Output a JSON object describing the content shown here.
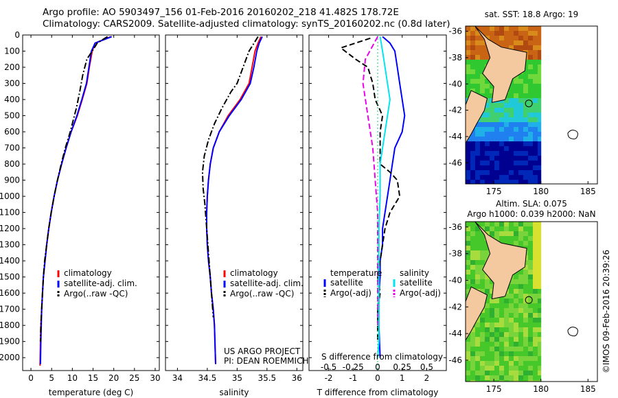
{
  "header": {
    "line1": "Argo profile: AO 5903497_156 01-Feb-2016 20160202_218 41.482S 178.72E",
    "line2": "Climatology: CARS2009. Satellite-adjusted climatology: synTS_20160202.nc (0.8d later)"
  },
  "credit": "©IMOS 09-Feb-2016 20:39:26",
  "colors": {
    "climatology": "#ff0000",
    "satellite": "#0000ff",
    "argo": "#000000",
    "sal_satellite": "#00e5ee",
    "sal_argo": "#ee00ee",
    "land": "#f5c9a0"
  },
  "chart_data": [
    {
      "type": "line",
      "panel": "temperature",
      "xlabel": "temperature (deg C)",
      "ylabel": "",
      "xlim": [
        -2,
        31
      ],
      "ylim": [
        2080,
        0
      ],
      "xticks": [
        "0",
        "5",
        "10",
        "15",
        "20",
        "25",
        "30"
      ],
      "xtick_values": [
        0,
        5,
        10,
        15,
        20,
        25,
        30
      ],
      "yticks": [
        "0",
        "100",
        "200",
        "300",
        "400",
        "500",
        "600",
        "700",
        "800",
        "900",
        "1000",
        "1100",
        "1200",
        "1300",
        "1400",
        "1500",
        "1600",
        "1700",
        "1800",
        "1900",
        "2000"
      ],
      "ytick_values": [
        0,
        100,
        200,
        300,
        400,
        500,
        600,
        700,
        800,
        900,
        1000,
        1100,
        1200,
        1300,
        1400,
        1500,
        1600,
        1700,
        1800,
        1900,
        2000
      ],
      "legend": [
        "climatology",
        "satellite-adj. clim.",
        "Argo(..raw -QC)"
      ],
      "series": [
        {
          "name": "climatology",
          "style": "solid",
          "color": "#ff0000",
          "x": [
            19.3,
            15.5,
            14.8,
            14.1,
            13.5,
            12.4,
            11.2,
            9.7,
            8.5,
            7.4,
            6.4,
            5.6,
            4.9,
            4.3,
            3.8,
            3.4,
            3.0,
            2.8,
            2.6,
            2.4,
            2.3,
            2.2
          ],
          "y": [
            10,
            50,
            100,
            200,
            300,
            400,
            500,
            600,
            700,
            800,
            900,
            1000,
            1100,
            1200,
            1300,
            1400,
            1500,
            1600,
            1700,
            1800,
            1900,
            2050
          ]
        },
        {
          "name": "satellite-adj. clim.",
          "style": "solid",
          "color": "#0000ff",
          "x": [
            19.5,
            15.5,
            14.6,
            14.0,
            13.4,
            12.3,
            11.1,
            9.7,
            8.5,
            7.4,
            6.4,
            5.6,
            4.9,
            4.3,
            3.8,
            3.4,
            3.0,
            2.8,
            2.6,
            2.5,
            2.4,
            2.3
          ],
          "y": [
            10,
            50,
            100,
            200,
            300,
            400,
            500,
            600,
            700,
            800,
            900,
            1000,
            1100,
            1200,
            1300,
            1400,
            1500,
            1600,
            1700,
            1800,
            1900,
            2040
          ]
        },
        {
          "name": "Argo(..raw -QC)",
          "style": "dashdot",
          "color": "#000000",
          "x": [
            18.5,
            16.0,
            14.8,
            13.5,
            12.5,
            11.8,
            11.0,
            9.5,
            8.3,
            7.3,
            6.4,
            5.6,
            4.9,
            4.3,
            3.8,
            3.3,
            3.0,
            2.8,
            2.6,
            2.4,
            2.3
          ],
          "y": [
            10,
            50,
            100,
            150,
            250,
            350,
            450,
            600,
            700,
            800,
            900,
            1000,
            1100,
            1200,
            1300,
            1400,
            1500,
            1600,
            1700,
            1800,
            1900
          ]
        }
      ]
    },
    {
      "type": "line",
      "panel": "salinity",
      "xlabel": "salinity",
      "xlim": [
        33.8,
        36.1
      ],
      "ylim": [
        2080,
        0
      ],
      "xticks": [
        "34",
        "34.5",
        "35",
        "35.5",
        "36"
      ],
      "xtick_values": [
        34,
        34.5,
        35,
        35.5,
        36
      ],
      "legend": [
        "climatology",
        "satellite-adj. clim.",
        "Argo(..raw -QC)"
      ],
      "annotation": [
        "US ARGO PROJECT",
        "PI: DEAN ROEMMICH"
      ],
      "series": [
        {
          "name": "climatology",
          "style": "solid",
          "color": "#ff0000",
          "x": [
            35.4,
            35.35,
            35.3,
            35.25,
            35.2,
            35.05,
            34.85,
            34.7,
            34.6,
            34.55,
            34.52,
            34.5,
            34.49,
            34.49,
            34.5,
            34.52,
            34.55,
            34.57,
            34.6,
            34.62,
            34.64
          ],
          "y": [
            10,
            50,
            100,
            200,
            300,
            400,
            500,
            600,
            700,
            800,
            900,
            1000,
            1100,
            1200,
            1300,
            1400,
            1500,
            1600,
            1700,
            1800,
            2040
          ]
        },
        {
          "name": "satellite-adj. clim.",
          "style": "solid",
          "color": "#0000ff",
          "x": [
            35.42,
            35.37,
            35.33,
            35.28,
            35.22,
            35.07,
            34.87,
            34.7,
            34.6,
            34.55,
            34.52,
            34.5,
            34.49,
            34.49,
            34.5,
            34.52,
            34.55,
            34.57,
            34.6,
            34.62,
            34.64
          ],
          "y": [
            10,
            50,
            100,
            200,
            300,
            400,
            500,
            600,
            700,
            800,
            900,
            1000,
            1100,
            1200,
            1300,
            1400,
            1500,
            1600,
            1700,
            1800,
            2040
          ]
        },
        {
          "name": "Argo(..raw -QC)",
          "style": "dashdot",
          "color": "#000000",
          "x": [
            35.35,
            35.2,
            35.1,
            35.0,
            34.9,
            34.75,
            34.62,
            34.52,
            34.45,
            34.42,
            34.43,
            34.46,
            34.48,
            34.5,
            34.52,
            34.54,
            34.56,
            34.58,
            34.6
          ],
          "y": [
            10,
            100,
            200,
            300,
            350,
            450,
            550,
            650,
            750,
            850,
            950,
            1050,
            1150,
            1250,
            1350,
            1450,
            1550,
            1650,
            1750
          ]
        }
      ]
    },
    {
      "type": "line",
      "panel": "differences",
      "xlabel": "T difference from climatology",
      "xlabel_top": "S difference from climatology",
      "xlim": [
        -2.8,
        2.8
      ],
      "ylim": [
        2080,
        0
      ],
      "xticks": [
        "-2",
        "-1",
        "0",
        "1",
        "2"
      ],
      "xtick_values": [
        -2,
        -1,
        0,
        1,
        2
      ],
      "xticks_top": [
        "-0.5",
        "-0.25",
        "0",
        "0.25",
        "0.5"
      ],
      "legend_titles": [
        "temperature",
        "salinity"
      ],
      "legend": [
        "satellite",
        "Argo(-adj)",
        "satellite",
        "Argo(-adj)"
      ],
      "series": [
        {
          "name": "temperature satellite",
          "style": "solid",
          "color": "#0000ff",
          "x": [
            0.2,
            0.5,
            0.7,
            0.8,
            0.9,
            1.0,
            1.1,
            1.0,
            0.7,
            0.6,
            0.5,
            0.4,
            0.3,
            0.2,
            0.2,
            0.1,
            0.1,
            0.05,
            0.05,
            0.05,
            0.1
          ],
          "y": [
            10,
            50,
            100,
            200,
            300,
            400,
            500,
            600,
            700,
            800,
            900,
            1000,
            1100,
            1200,
            1300,
            1400,
            1500,
            1600,
            1700,
            1800,
            2000
          ]
        },
        {
          "name": "temperature Argo(-adj)",
          "style": "dashed",
          "color": "#000000",
          "x": [
            -0.3,
            -1.5,
            -0.9,
            -0.4,
            -0.2,
            -0.1,
            0.2,
            0.1,
            0.1,
            0.5,
            0.8,
            0.9,
            0.5,
            0.3,
            0.2,
            0.1,
            0.0,
            0.1,
            0.0,
            0.0,
            0.0
          ],
          "y": [
            20,
            80,
            150,
            200,
            300,
            400,
            500,
            600,
            800,
            850,
            900,
            1000,
            1100,
            1200,
            1300,
            1400,
            1500,
            1600,
            1700,
            1800,
            1900
          ]
        },
        {
          "name": "salinity satellite",
          "style": "solid",
          "color": "#00e5ee",
          "x": [
            0.1,
            0.2,
            0.3,
            0.4,
            0.5,
            0.4,
            0.3,
            0.2,
            0.1,
            0.1,
            0.05,
            0.05,
            0.05,
            0.05,
            0.05,
            0.0
          ],
          "y": [
            10,
            100,
            200,
            300,
            400,
            500,
            600,
            700,
            800,
            1000,
            1200,
            1400,
            1600,
            1800,
            1900,
            2000
          ]
        },
        {
          "name": "salinity Argo(-adj)",
          "style": "dashed",
          "color": "#ee00ee",
          "x": [
            0.0,
            -0.5,
            -0.6,
            -0.4,
            -0.2,
            -0.1,
            0.0,
            0.0,
            0.0,
            0.0,
            0.0
          ],
          "y": [
            10,
            150,
            300,
            500,
            700,
            900,
            1100,
            1300,
            1500,
            1700,
            1800
          ]
        }
      ]
    },
    {
      "type": "heatmap",
      "panel": "sst-map",
      "title": "sat. SST: 18.8 Argo: 19",
      "xlim": [
        172,
        186
      ],
      "ylim": [
        -47.6,
        -35.6
      ],
      "xticks": [
        "175",
        "180",
        "185"
      ],
      "xtick_values": [
        175,
        180,
        185
      ],
      "yticks": [
        "-36",
        "-38",
        "-40",
        "-42",
        "-44",
        "-46"
      ],
      "ytick_values": [
        -36,
        -38,
        -40,
        -42,
        -44,
        -46
      ],
      "data_lon_max": 180
    },
    {
      "type": "heatmap",
      "panel": "sla-map",
      "title_lines": [
        "Altim. SLA: 0.075",
        "Argo h1000: 0.039 h2000: NaN"
      ],
      "xlim": [
        172,
        186
      ],
      "ylim": [
        -47.6,
        -35.6
      ],
      "xticks": [
        "175",
        "180",
        "185"
      ],
      "xtick_values": [
        175,
        180,
        185
      ],
      "yticks": [
        "-36",
        "-38",
        "-40",
        "-42",
        "-44",
        "-46"
      ],
      "ytick_values": [
        -36,
        -38,
        -40,
        -42,
        -44,
        -46
      ],
      "data_lon_max": 180
    }
  ]
}
